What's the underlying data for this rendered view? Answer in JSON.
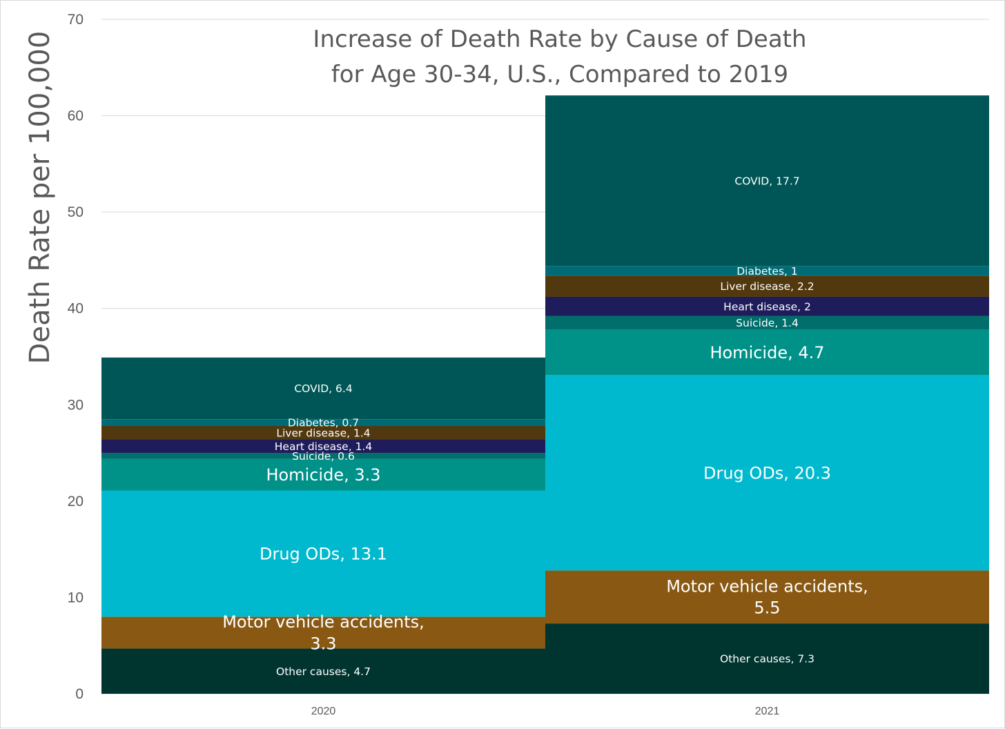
{
  "chart_data": {
    "type": "bar",
    "stacked": true,
    "title": [
      "Increase of Death Rate by Cause of Death",
      "for Age 30-34, U.S., Compared to 2019"
    ],
    "ylabel": "Death Rate per 100,000",
    "xlabel": "",
    "ylim": [
      0,
      70
    ],
    "yticks": [
      0,
      10,
      20,
      30,
      40,
      50,
      60,
      70
    ],
    "grid": true,
    "legend": "none",
    "categories": [
      "2020",
      "2021"
    ],
    "series": [
      {
        "name": "Other causes",
        "color": "#00342f",
        "values": [
          4.7,
          7.3
        ],
        "labels": [
          "Other causes, 4.7",
          "Other causes, 7.3"
        ],
        "size": [
          "small",
          "small"
        ]
      },
      {
        "name": "Motor vehicle accidents",
        "color": "#895913",
        "values": [
          3.3,
          5.5
        ],
        "labels": [
          [
            "Motor vehicle accidents,",
            "3.3"
          ],
          [
            "Motor vehicle accidents,",
            "5.5"
          ]
        ],
        "size": [
          "large",
          "large"
        ]
      },
      {
        "name": "Drug ODs",
        "color": "#00b9ce",
        "values": [
          13.1,
          20.3
        ],
        "labels": [
          "Drug ODs, 13.1",
          "Drug ODs, 20.3"
        ],
        "size": [
          "large",
          "large"
        ]
      },
      {
        "name": "Homicide",
        "color": "#009189",
        "values": [
          3.3,
          4.7
        ],
        "labels": [
          "Homicide, 3.3",
          "Homicide, 4.7"
        ],
        "size": [
          "large",
          "large"
        ]
      },
      {
        "name": "Suicide",
        "color": "#006e6b",
        "values": [
          0.6,
          1.4
        ],
        "labels": [
          "Suicide, 0.6",
          "Suicide, 1.4"
        ],
        "size": [
          "small",
          "small"
        ]
      },
      {
        "name": "Heart disease",
        "color": "#1f1c5c",
        "values": [
          1.4,
          2
        ],
        "labels": [
          "Heart disease, 1.4",
          "Heart disease, 2"
        ],
        "size": [
          "small",
          "small"
        ]
      },
      {
        "name": "Liver disease",
        "color": "#51380e",
        "values": [
          1.4,
          2.2
        ],
        "labels": [
          "Liver disease, 1.4",
          "Liver disease, 2.2"
        ],
        "size": [
          "small",
          "small"
        ]
      },
      {
        "name": "Diabetes",
        "color": "#006a75",
        "values": [
          0.7,
          1
        ],
        "labels": [
          "Diabetes, 0.7",
          "Diabetes, 1"
        ],
        "size": [
          "small",
          "small"
        ]
      },
      {
        "name": "COVID",
        "color": "#005656",
        "values": [
          6.4,
          17.7
        ],
        "labels": [
          "COVID, 6.4",
          "COVID, 17.7"
        ],
        "size": [
          "small",
          "small"
        ]
      }
    ]
  }
}
